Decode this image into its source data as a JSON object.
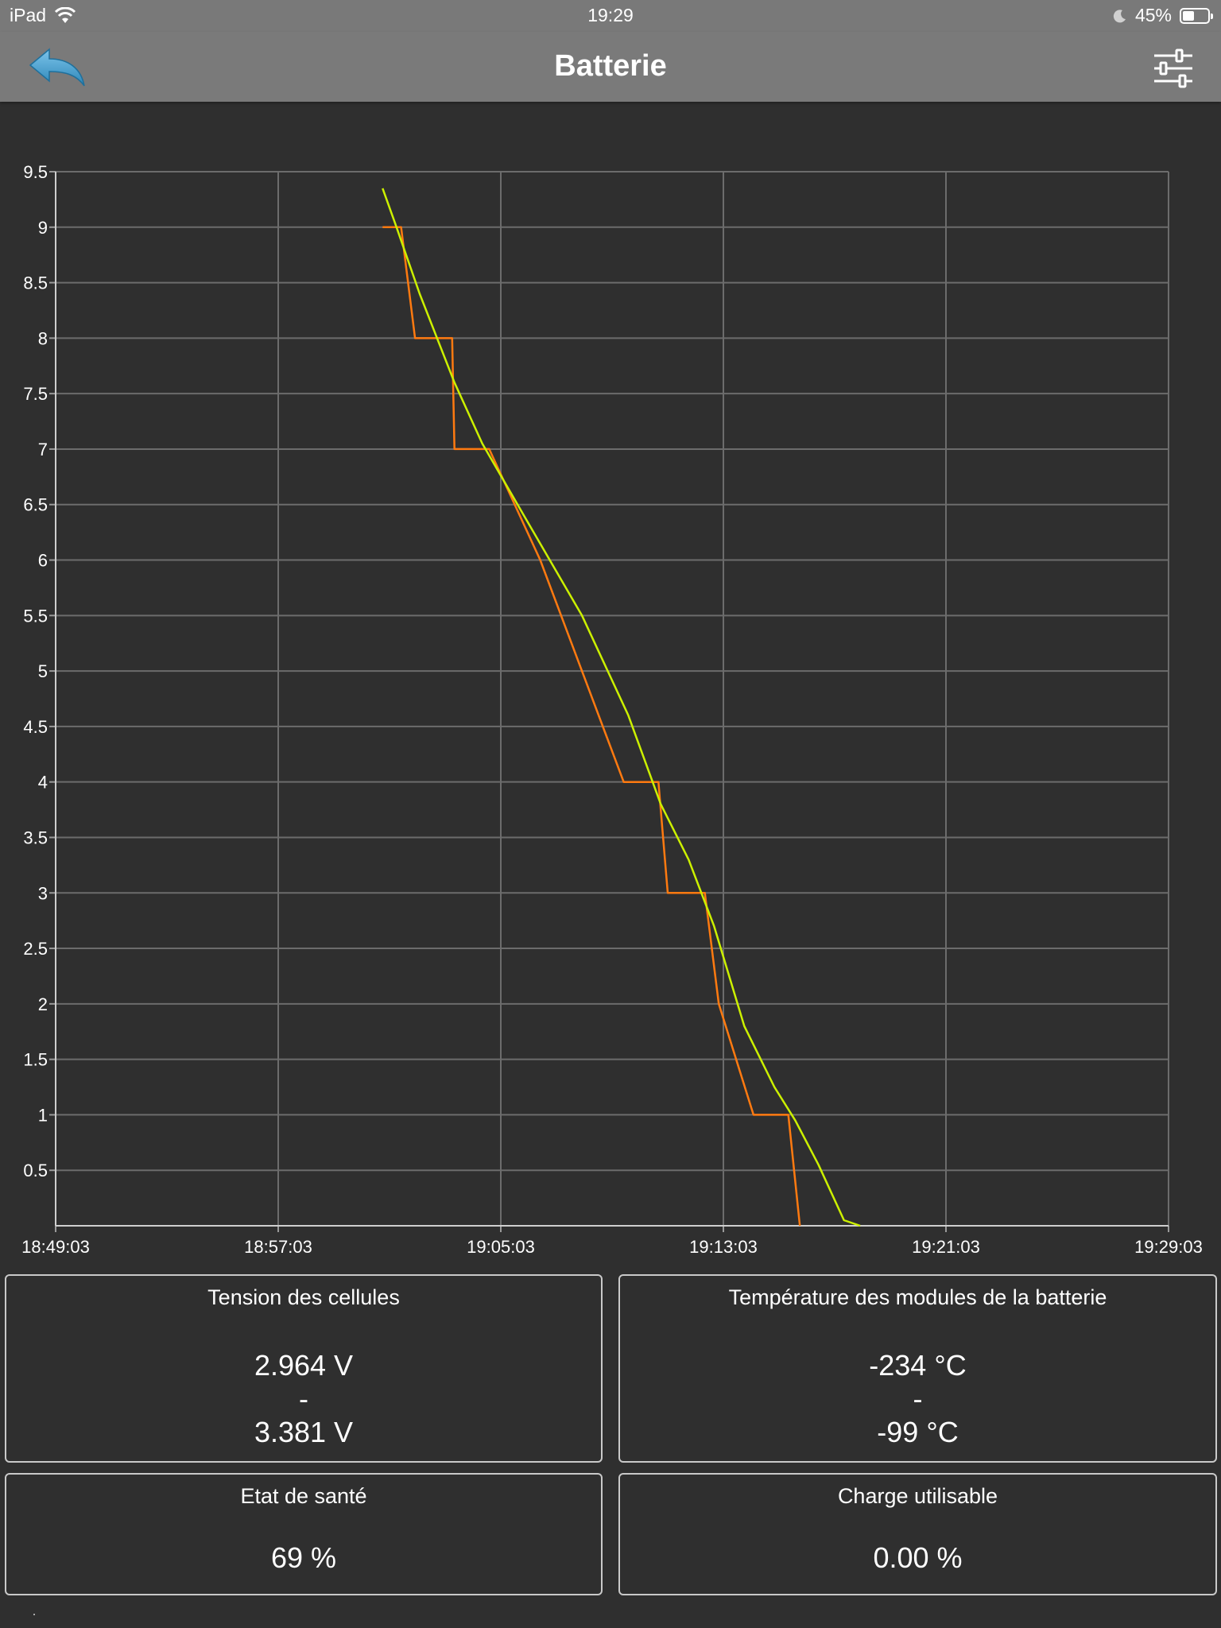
{
  "status_bar": {
    "device": "iPad",
    "time": "19:29",
    "battery_percent": "45%",
    "battery_level": 0.45
  },
  "nav": {
    "title": "Batterie",
    "back_icon": "back-arrow-icon",
    "settings_icon": "sliders-icon"
  },
  "colors": {
    "background": "#2f2f2f",
    "navbar": "#7a7a7a",
    "grid": "#6c6c6c",
    "series_orange": "#ff7a10",
    "series_yellow": "#ccf000"
  },
  "chart_data": {
    "type": "line",
    "y_ticks": [
      "9.5",
      "9",
      "8.5",
      "8",
      "7.5",
      "7",
      "6.5",
      "6",
      "5.5",
      "5",
      "4.5",
      "4",
      "3.5",
      "3",
      "2.5",
      "2",
      "1.5",
      "1",
      "0.5"
    ],
    "x_ticks": [
      "18:49:03",
      "18:57:03",
      "19:05:03",
      "19:13:03",
      "19:21:03",
      "19:29:03"
    ],
    "ylim": [
      0,
      9.5
    ],
    "xlim": [
      "18:49:03",
      "19:29:03"
    ],
    "grid": true,
    "series": [
      {
        "color": "#ff7a10",
        "x": [
          "19:00:48",
          "19:01:28",
          "19:01:58",
          "19:03:18",
          "19:03:23",
          "19:04:38",
          "19:06:28",
          "19:09:28",
          "19:10:43",
          "19:11:03",
          "19:12:23",
          "19:12:53",
          "19:14:08",
          "19:15:23",
          "19:15:48"
        ],
        "y": [
          9,
          9,
          8,
          8,
          7,
          7,
          6,
          4,
          4,
          3,
          3,
          2,
          1,
          1,
          0
        ]
      },
      {
        "color": "#ccf000",
        "x": [
          "19:00:48",
          "19:01:18",
          "19:02:08",
          "19:03:23",
          "19:04:23",
          "19:05:53",
          "19:07:58",
          "19:09:38",
          "19:10:48",
          "19:11:48",
          "19:12:43",
          "19:13:48",
          "19:14:53",
          "19:15:38",
          "19:16:28",
          "19:17:23",
          "19:17:58"
        ],
        "y": [
          9.35,
          9.0,
          8.4,
          7.6,
          7.05,
          6.4,
          5.5,
          4.6,
          3.8,
          3.3,
          2.7,
          1.8,
          1.25,
          0.95,
          0.55,
          0.05,
          0
        ]
      }
    ]
  },
  "cards": {
    "cell_voltage": {
      "title": "Tension des cellules",
      "min": "2.964 V",
      "sep": "-",
      "max": "3.381 V"
    },
    "module_temp": {
      "title": "Température des modules de la batterie",
      "min": "-234 °C",
      "sep": "-",
      "max": "-99 °C"
    },
    "health": {
      "title": "Etat de santé",
      "value": "69 %"
    },
    "usable_charge": {
      "title": "Charge utilisable",
      "value": "0.00 %"
    }
  }
}
